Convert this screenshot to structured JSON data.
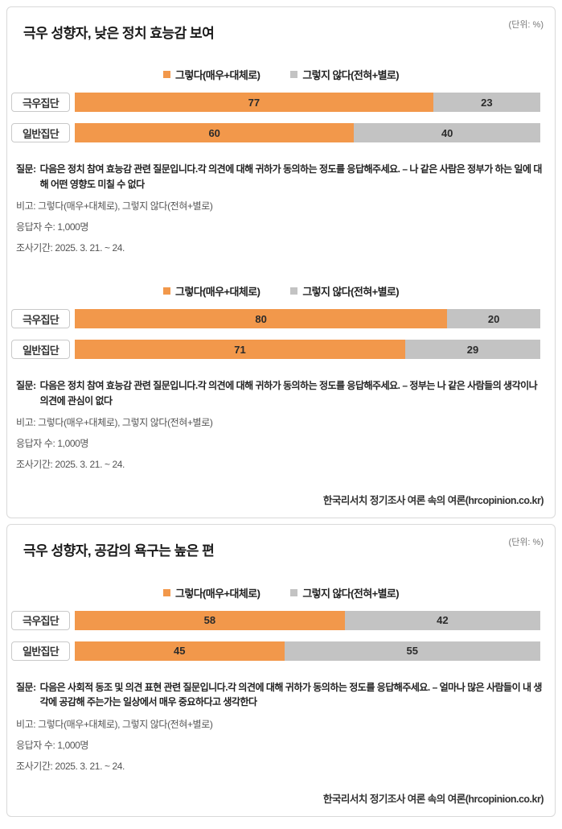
{
  "unit_label": "(단위: %)",
  "source": "한국리서치 정기조사 여론 속의 여론(hrcopinion.co.kr)",
  "panels": [
    {
      "title": "극우 성향자, 낮은 정치 효능감 보여",
      "sections": [
        {
          "question_label": "질문:",
          "question_text": "다음은 정치 참여 효능감 관련 질문입니다.각 의견에 대해 귀하가 동의하는 정도를 응답해주세요. – 나 같은 사람은 정부가 하는 일에 대해 어떤 영향도 미칠 수 없다",
          "note": "비고: 그렇다(매우+대체로), 그렇지 않다(전혀+별로)",
          "respondents": "응답자 수: 1,000명",
          "period": "조사기간: 2025. 3. 21. ~ 24."
        },
        {
          "question_label": "질문:",
          "question_text": "다음은 정치 참여 효능감 관련 질문입니다.각 의견에 대해 귀하가 동의하는 정도를 응답해주세요. – 정부는 나 같은 사람들의 생각이나 의견에 관심이 없다",
          "note": "비고: 그렇다(매우+대체로), 그렇지 않다(전혀+별로)",
          "respondents": "응답자 수: 1,000명",
          "period": "조사기간: 2025. 3. 21. ~ 24."
        }
      ]
    },
    {
      "title": "극우 성향자, 공감의 욕구는 높은 편",
      "sections": [
        {
          "question_label": "질문:",
          "question_text": "다음은 사회적 동조 및 의견 표현 관련 질문입니다.각 의견에 대해 귀하가 동의하는 정도를 응답해주세요. – 얼마나 많은 사람들이 내 생각에 공감해 주는가는 일상에서 매우 중요하다고 생각한다",
          "note": "비고: 그렇다(매우+대체로), 그렇지 않다(전혀+별로)",
          "respondents": "응답자 수: 1,000명",
          "period": "조사기간: 2025. 3. 21. ~ 24."
        }
      ]
    }
  ],
  "chart_data": [
    {
      "type": "bar",
      "stacked": true,
      "orientation": "horizontal",
      "unit": "%",
      "title": "나 같은 사람은 정부가 하는 일에 대해 어떤 영향도 미칠 수 없다",
      "categories": [
        "극우집단",
        "일반집단"
      ],
      "series": [
        {
          "name": "그렇다(매우+대체로)",
          "color": "#F2984B",
          "values": [
            77,
            60
          ]
        },
        {
          "name": "그렇지 않다(전혀+별로)",
          "color": "#C3C3C3",
          "values": [
            23,
            40
          ]
        }
      ],
      "xlim": [
        0,
        100
      ],
      "legend_position": "top",
      "grid": false
    },
    {
      "type": "bar",
      "stacked": true,
      "orientation": "horizontal",
      "unit": "%",
      "title": "정부는 나 같은 사람들의 생각이나 의견에 관심이 없다",
      "categories": [
        "극우집단",
        "일반집단"
      ],
      "series": [
        {
          "name": "그렇다(매우+대체로)",
          "color": "#F2984B",
          "values": [
            80,
            71
          ]
        },
        {
          "name": "그렇지 않다(전혀+별로)",
          "color": "#C3C3C3",
          "values": [
            20,
            29
          ]
        }
      ],
      "xlim": [
        0,
        100
      ],
      "legend_position": "top",
      "grid": false
    },
    {
      "type": "bar",
      "stacked": true,
      "orientation": "horizontal",
      "unit": "%",
      "title": "얼마나 많은 사람들이 내 생각에 공감해 주는가는 일상에서 매우 중요하다고 생각한다",
      "categories": [
        "극우집단",
        "일반집단"
      ],
      "series": [
        {
          "name": "그렇다(매우+대체로)",
          "color": "#F2984B",
          "values": [
            58,
            45
          ]
        },
        {
          "name": "그렇지 않다(전혀+별로)",
          "color": "#C3C3C3",
          "values": [
            42,
            55
          ]
        }
      ],
      "xlim": [
        0,
        100
      ],
      "legend_position": "top",
      "grid": false
    }
  ]
}
